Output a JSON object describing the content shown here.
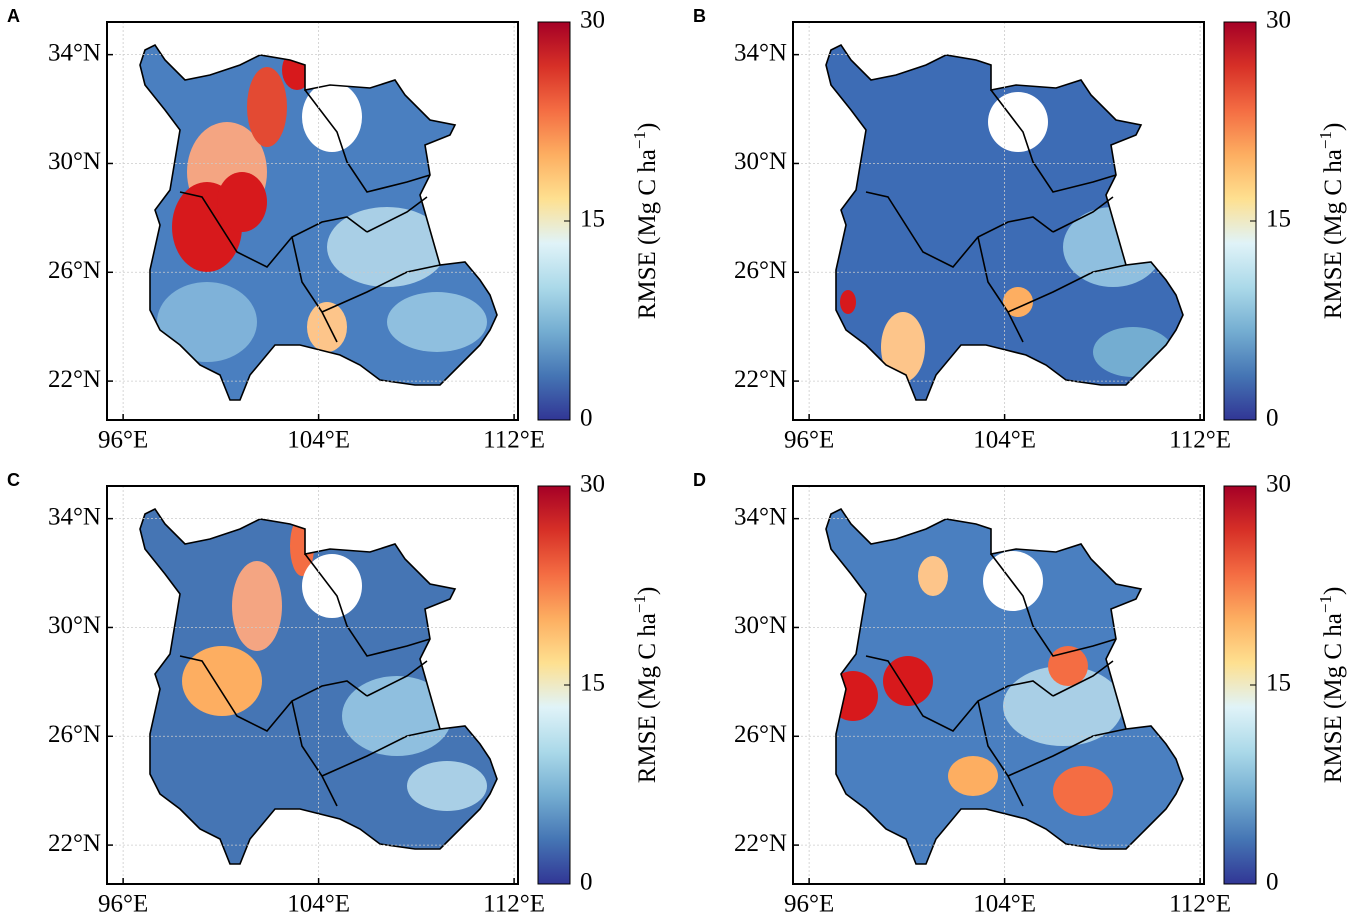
{
  "colormap": [
    "#313695",
    "#4575b4",
    "#74add1",
    "#abd9e9",
    "#e0f3f8",
    "#fee090",
    "#fdae61",
    "#f46d43",
    "#d73027",
    "#a50026"
  ],
  "panels": [
    {
      "label": "A",
      "xlim": [
        95.34,
        112.16
      ],
      "ylim": [
        20.57,
        35.2
      ],
      "xticks": [
        {
          "value": 96,
          "label": "96°E"
        },
        {
          "value": 104,
          "label": "104°E"
        },
        {
          "value": 112,
          "label": "112°E"
        }
      ],
      "yticks": [
        {
          "value": 22,
          "label": "22°N"
        },
        {
          "value": 26,
          "label": "26°N"
        },
        {
          "value": 30,
          "label": "30°N"
        },
        {
          "value": 34,
          "label": "34°N"
        }
      ],
      "colorbar": {
        "lim": [
          0,
          30
        ],
        "ticks": [
          0,
          15,
          30
        ],
        "label": "RMSE (Mg C ha",
        "label_superscript": "−1",
        "label_end": ")"
      }
    },
    {
      "label": "B",
      "xlim": [
        95.34,
        112.16
      ],
      "ylim": [
        20.57,
        35.2
      ],
      "xticks": [
        {
          "value": 96,
          "label": "96°E"
        },
        {
          "value": 104,
          "label": "104°E"
        },
        {
          "value": 112,
          "label": "112°E"
        }
      ],
      "yticks": [
        {
          "value": 22,
          "label": "22°N"
        },
        {
          "value": 26,
          "label": "26°N"
        },
        {
          "value": 30,
          "label": "30°N"
        },
        {
          "value": 34,
          "label": "34°N"
        }
      ],
      "colorbar": {
        "lim": [
          0,
          30
        ],
        "ticks": [
          0,
          15,
          30
        ],
        "label": "RMSE (Mg C ha",
        "label_superscript": "−1",
        "label_end": ")"
      }
    },
    {
      "label": "C",
      "xlim": [
        95.34,
        112.16
      ],
      "ylim": [
        20.57,
        35.2
      ],
      "xticks": [
        {
          "value": 96,
          "label": "96°E"
        },
        {
          "value": 104,
          "label": "104°E"
        },
        {
          "value": 112,
          "label": "112°E"
        }
      ],
      "yticks": [
        {
          "value": 22,
          "label": "22°N"
        },
        {
          "value": 26,
          "label": "26°N"
        },
        {
          "value": 30,
          "label": "30°N"
        },
        {
          "value": 34,
          "label": "34°N"
        }
      ],
      "colorbar": {
        "lim": [
          0,
          30
        ],
        "ticks": [
          0,
          15,
          30
        ],
        "label": "RMSE (Mg C ha",
        "label_superscript": "−1",
        "label_end": ")"
      }
    },
    {
      "label": "D",
      "xlim": [
        95.34,
        112.16
      ],
      "ylim": [
        20.57,
        35.2
      ],
      "xticks": [
        {
          "value": 96,
          "label": "96°E"
        },
        {
          "value": 104,
          "label": "104°E"
        },
        {
          "value": 112,
          "label": "112°E"
        }
      ],
      "yticks": [
        {
          "value": 22,
          "label": "22°N"
        },
        {
          "value": 26,
          "label": "26°N"
        },
        {
          "value": 30,
          "label": "30°N"
        },
        {
          "value": 34,
          "label": "34°N"
        }
      ],
      "colorbar": {
        "lim": [
          0,
          30
        ],
        "ticks": [
          0,
          15,
          30
        ],
        "label": "RMSE (Mg C ha",
        "label_superscript": "−1",
        "label_end": ")"
      }
    }
  ]
}
